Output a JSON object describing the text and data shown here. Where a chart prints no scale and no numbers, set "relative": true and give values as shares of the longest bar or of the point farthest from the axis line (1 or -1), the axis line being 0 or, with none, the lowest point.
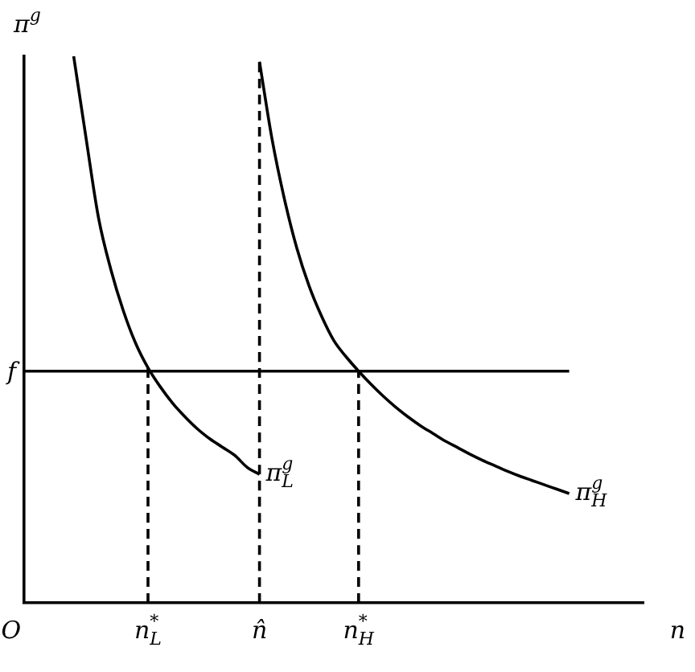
{
  "chart_data": {
    "type": "line",
    "relative": true,
    "xlabel": "n",
    "ylabel": "π$^{g}$",
    "annotations": [
      "O"
    ],
    "categories": [
      null,
      null,
      null,
      null,
      null,
      null,
      null,
      null,
      null,
      null,
      "n$^{*}$$_{L}$",
      null,
      null,
      null,
      null,
      null,
      null,
      null,
      null,
      "n̂",
      null,
      null,
      null,
      null,
      null,
      null,
      null,
      "n$^{*}$$_{H}$",
      null,
      null,
      null,
      null,
      null,
      null,
      null,
      null,
      null,
      null,
      null,
      null,
      null,
      null,
      null,
      null,
      null,
      null,
      null,
      null,
      null,
      null,
      null
    ],
    "series": [
      {
        "name": "π$^{g}$$_{L}$",
        "color": "#000000",
        "values": [
          null,
          null,
          null,
          null,
          1.0,
          0.85,
          0.705,
          0.61,
          0.535,
          0.475,
          0.43,
          0.395,
          0.365,
          0.34,
          0.318,
          0.3,
          0.285,
          0.27,
          0.248,
          0.235,
          null,
          null,
          null,
          null,
          null,
          null,
          null,
          null,
          null,
          null,
          null,
          null,
          null,
          null,
          null,
          null,
          null,
          null,
          null,
          null,
          null,
          null,
          null,
          null,
          null,
          null,
          null,
          null,
          null,
          null,
          null
        ]
      },
      {
        "name": "π$^{g}$$_{H}$",
        "color": "#000000",
        "values": [
          null,
          null,
          null,
          null,
          null,
          null,
          null,
          null,
          null,
          null,
          null,
          null,
          null,
          null,
          null,
          null,
          null,
          null,
          null,
          0.99,
          0.85,
          0.74,
          0.65,
          0.58,
          0.525,
          0.48,
          0.45,
          0.424,
          0.4,
          0.378,
          0.358,
          0.34,
          0.324,
          0.31,
          0.296,
          0.284,
          0.272,
          0.261,
          0.251,
          0.241,
          0.232,
          0.224,
          0.216,
          0.208,
          0.2,
          null,
          null,
          null,
          null,
          null,
          null
        ]
      },
      {
        "name": "f",
        "color": "#000000",
        "values": [
          0.424,
          0.424,
          0.424,
          0.424,
          0.424,
          0.424,
          0.424,
          0.424,
          0.424,
          0.424,
          0.424,
          0.424,
          0.424,
          0.424,
          0.424,
          0.424,
          0.424,
          0.424,
          0.424,
          0.424,
          0.424,
          0.424,
          0.424,
          0.424,
          0.424,
          0.424,
          0.424,
          0.424,
          0.424,
          0.424,
          0.424,
          0.424,
          0.424,
          0.424,
          0.424,
          0.424,
          0.424,
          0.424,
          0.424,
          0.424,
          0.424,
          0.424,
          0.424,
          0.424,
          0.424,
          null,
          null,
          null,
          null,
          null,
          null
        ]
      },
      {
        "color": "#000000",
        "line_style": "dashed",
        "x": [
          "n$^{*}$$_{L}$",
          "n$^{*}$$_{L}$"
        ],
        "values": [
          0,
          0.43
        ]
      },
      {
        "color": "#000000",
        "line_style": "dashed",
        "x": [
          "n̂",
          "n̂"
        ],
        "values": [
          0,
          0.99
        ]
      },
      {
        "color": "#000000",
        "line_style": "dashed",
        "x": [
          "n$^{*}$$_{H}$",
          "n$^{*}$$_{H}$"
        ],
        "values": [
          0,
          0.424
        ]
      }
    ],
    "grid": false,
    "legend": false,
    "marker": "none"
  }
}
